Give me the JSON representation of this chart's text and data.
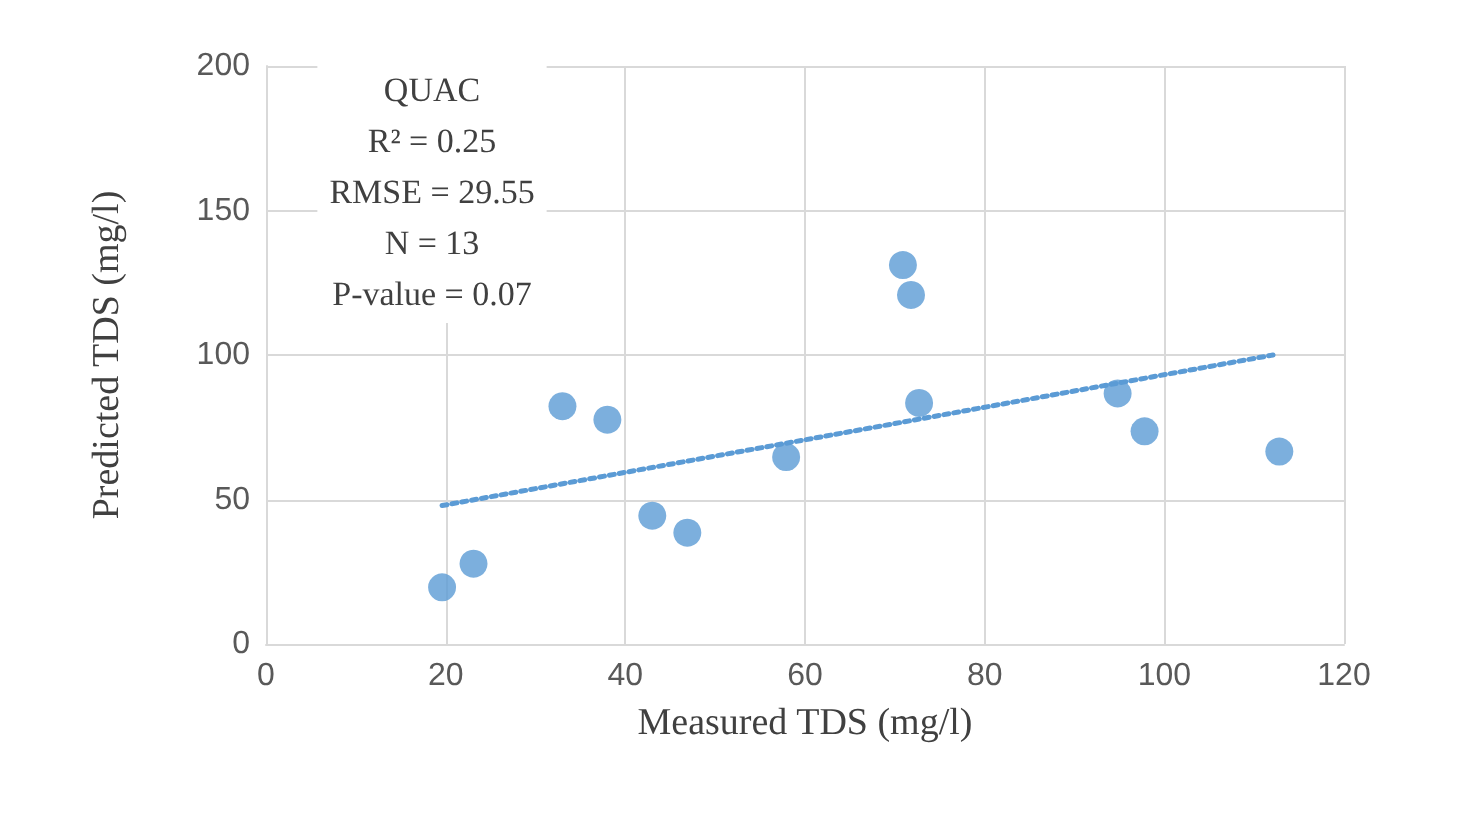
{
  "chart_data": {
    "type": "scatter",
    "xlabel": "Measured TDS (mg/l)",
    "ylabel": "Predicted TDS (mg/l)",
    "x": [
      19.6,
      23.1,
      33.0,
      38.0,
      43.0,
      46.9,
      57.9,
      70.9,
      71.8,
      72.7,
      94.8,
      97.8,
      112.8
    ],
    "series": [
      {
        "color": "#5b9bd5",
        "values": [
          19.6,
          27.8,
          82.3,
          77.6,
          44.4,
          38.5,
          64.7,
          131.1,
          120.8,
          83.4,
          86.7,
          73.6,
          66.6
        ],
        "marker": "circle"
      },
      {
        "type": "line",
        "color": "#5b9bd5",
        "line_style": "dotted",
        "marker": "none",
        "x": [
          19.6,
          112.1
        ],
        "values": [
          47.9,
          100
        ]
      }
    ],
    "xlim": [
      0,
      120
    ],
    "xticks": [
      0,
      20,
      40,
      60,
      80,
      100,
      120
    ],
    "ylim": [
      0,
      200
    ],
    "yticks": [
      0,
      50,
      100,
      150,
      200
    ],
    "grid": true,
    "annotations": [
      "QUAC\nR² = 0.25\nRMSE = 29.55\nN = 13\nP-value = 0.07"
    ]
  }
}
